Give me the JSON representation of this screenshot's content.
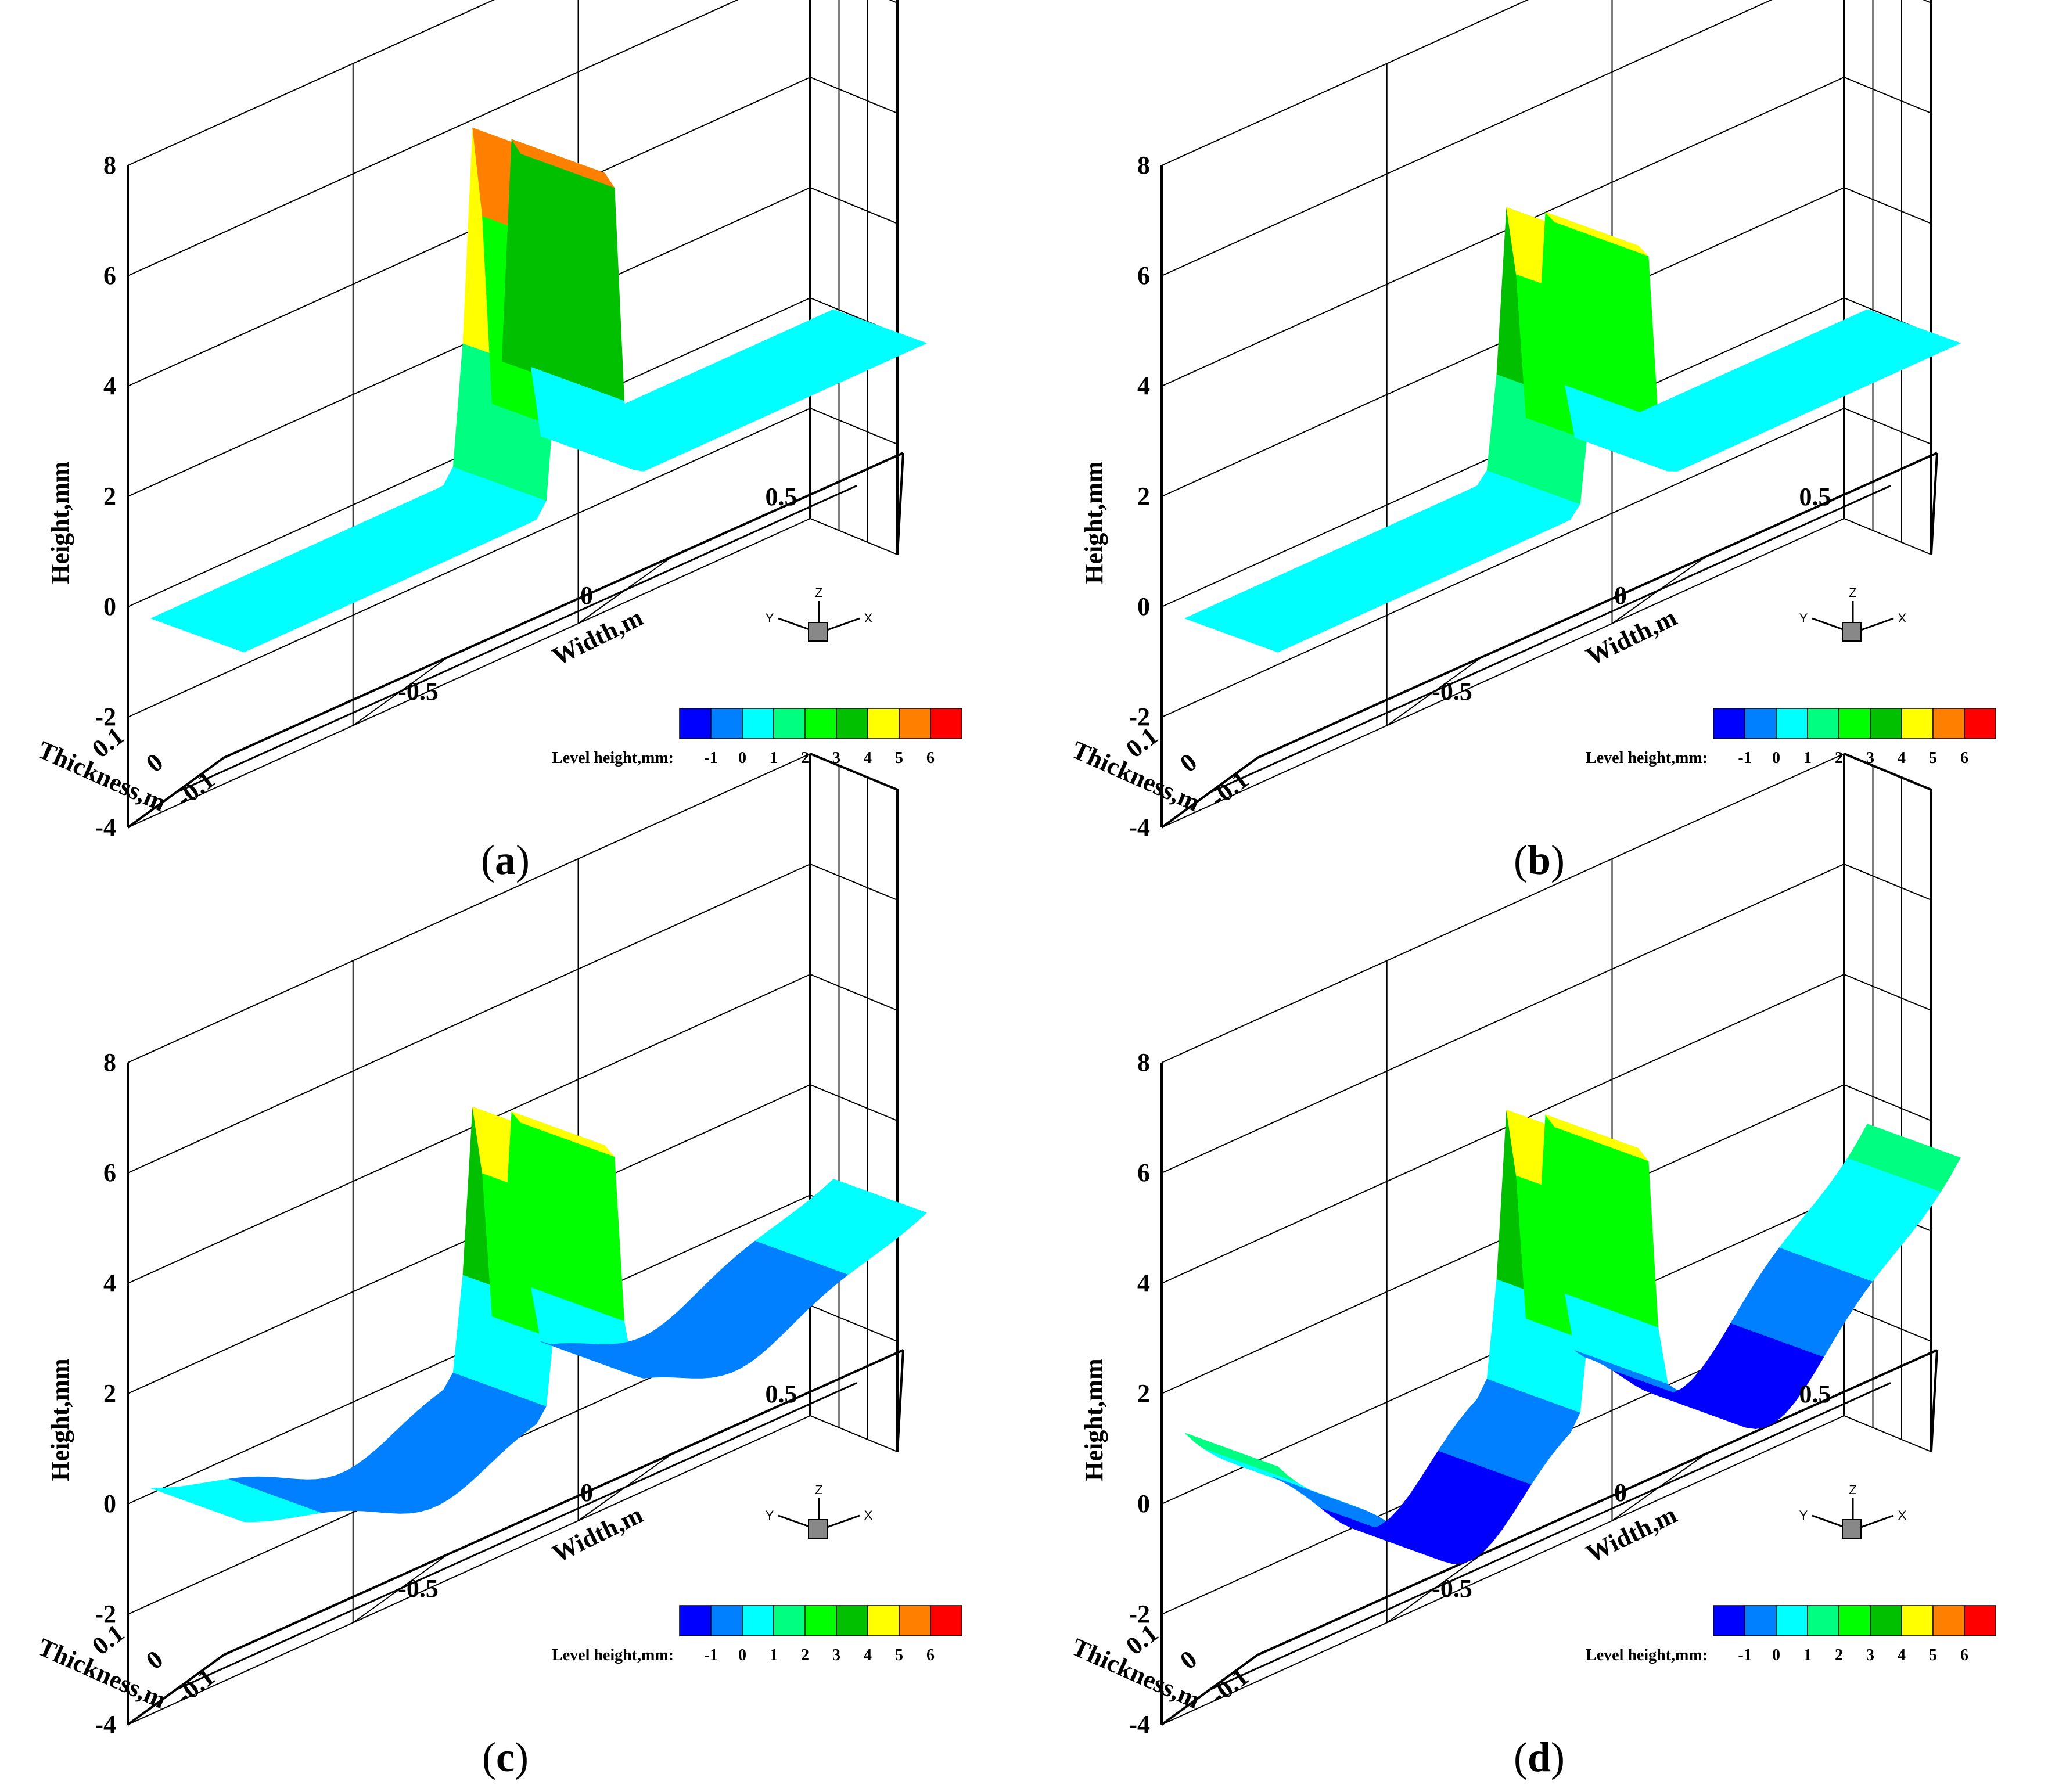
{
  "chart_data": [
    {
      "type": "surface",
      "panel": "a",
      "caption_letter": "a",
      "xlabel": "Width,m",
      "ylabel": "Thickness,m",
      "zlabel": "Height,mm",
      "x_ticks": [
        "-0.5",
        "0",
        "0.5"
      ],
      "y_ticks": [
        "0.1",
        "0",
        "-0.1"
      ],
      "z_ticks": [
        "8",
        "6",
        "4",
        "2",
        "0",
        "-2",
        "-4"
      ],
      "zlim": [
        -4,
        8
      ],
      "peak_height_mm": 6.5,
      "edge_height_mm": 0,
      "trough_depth_mm": 0,
      "triad": [
        "Z",
        "Y",
        "X"
      ],
      "colorbar": {
        "label": "Level height,mm:",
        "ticks": [
          "-1",
          "0",
          "1",
          "2",
          "3",
          "4",
          "5",
          "6"
        ],
        "colors": [
          "#0000ff",
          "#0080ff",
          "#00ffff",
          "#00ff80",
          "#00ff00",
          "#00c000",
          "#ffff00",
          "#ff8000",
          "#ff0000"
        ]
      }
    },
    {
      "type": "surface",
      "panel": "b",
      "caption_letter": "b",
      "xlabel": "Width,m",
      "ylabel": "Thickness,m",
      "zlabel": "Height,mm",
      "x_ticks": [
        "-0.5",
        "0",
        "0.5"
      ],
      "y_ticks": [
        "0.1",
        "0",
        "-0.1"
      ],
      "z_ticks": [
        "8",
        "6",
        "4",
        "2",
        "0",
        "-2",
        "-4"
      ],
      "zlim": [
        -4,
        8
      ],
      "peak_height_mm": 5,
      "edge_height_mm": 0,
      "trough_depth_mm": 0,
      "triad": [
        "Z",
        "Y",
        "X"
      ],
      "colorbar": {
        "label": "Level height,mm:",
        "ticks": [
          "-1",
          "0",
          "1",
          "2",
          "3",
          "4",
          "5",
          "6"
        ],
        "colors": [
          "#0000ff",
          "#0080ff",
          "#00ffff",
          "#00ff80",
          "#00ff00",
          "#00c000",
          "#ffff00",
          "#ff8000",
          "#ff0000"
        ]
      }
    },
    {
      "type": "surface",
      "panel": "c",
      "caption_letter": "c",
      "xlabel": "Width,m",
      "ylabel": "Thickness,m",
      "zlabel": "Height,mm",
      "x_ticks": [
        "-0.5",
        "0",
        "0.5"
      ],
      "y_ticks": [
        "0.1",
        "0",
        "-0.1"
      ],
      "z_ticks": [
        "8",
        "6",
        "4",
        "2",
        "0",
        "-2",
        "-4"
      ],
      "zlim": [
        -4,
        8
      ],
      "peak_height_mm": 5,
      "edge_height_mm": 0.5,
      "trough_depth_mm": -0.8,
      "triad": [
        "Z",
        "Y",
        "X"
      ],
      "colorbar": {
        "label": "Level height,mm:",
        "ticks": [
          "-1",
          "0",
          "1",
          "2",
          "3",
          "4",
          "5",
          "6"
        ],
        "colors": [
          "#0000ff",
          "#0080ff",
          "#00ffff",
          "#00ff80",
          "#00ff00",
          "#00c000",
          "#ffff00",
          "#ff8000",
          "#ff0000"
        ]
      }
    },
    {
      "type": "surface",
      "panel": "d",
      "caption_letter": "d",
      "xlabel": "Width,m",
      "ylabel": "Thickness,m",
      "zlabel": "Height,mm",
      "x_ticks": [
        "-0.5",
        "0",
        "0.5"
      ],
      "y_ticks": [
        "0.1",
        "0",
        "-0.1"
      ],
      "z_ticks": [
        "8",
        "6",
        "4",
        "2",
        "0",
        "-2",
        "-4"
      ],
      "zlim": [
        -4,
        8
      ],
      "peak_height_mm": 5,
      "edge_height_mm": 1.5,
      "trough_depth_mm": -1.8,
      "triad": [
        "Z",
        "Y",
        "X"
      ],
      "colorbar": {
        "label": "Level height,mm:",
        "ticks": [
          "-1",
          "0",
          "1",
          "2",
          "3",
          "4",
          "5",
          "6"
        ],
        "colors": [
          "#0000ff",
          "#0080ff",
          "#00ffff",
          "#00ff80",
          "#00ff00",
          "#00c000",
          "#ffff00",
          "#ff8000",
          "#ff0000"
        ]
      }
    }
  ]
}
